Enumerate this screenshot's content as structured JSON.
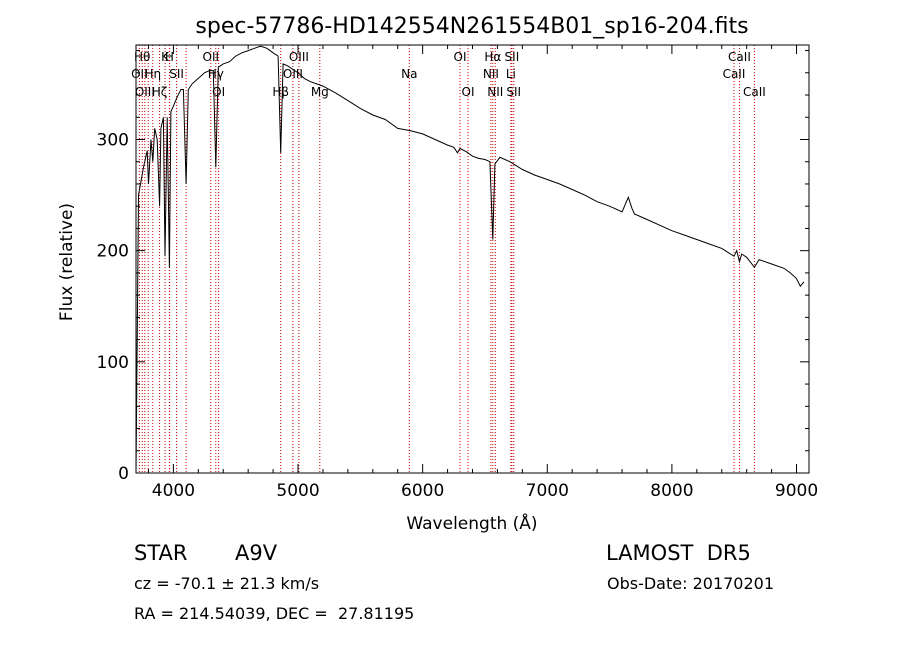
{
  "chart_data": {
    "type": "line",
    "title": "spec-57786-HD142554N261554B01_sp16-204.fits",
    "xlabel": "Wavelength (Å)",
    "ylabel": "Flux (relative)",
    "xlim": [
      3700,
      9100
    ],
    "ylim": [
      0,
      385
    ],
    "x_ticks": [
      4000,
      5000,
      6000,
      7000,
      8000,
      9000
    ],
    "y_ticks": [
      0,
      100,
      200,
      300
    ],
    "series": [
      {
        "x": [
          3700,
          3720,
          3760,
          3790,
          3800,
          3820,
          3835,
          3850,
          3870,
          3889,
          3900,
          3920,
          3933,
          3950,
          3968,
          3980,
          4000,
          4030,
          4060,
          4080,
          4102,
          4120,
          4150,
          4200,
          4250,
          4290,
          4320,
          4340,
          4360,
          4400,
          4450,
          4500,
          4550,
          4600,
          4650,
          4700,
          4750,
          4800,
          4840,
          4861,
          4880,
          4920,
          4960,
          5000,
          5050,
          5100,
          5150,
          5200,
          5300,
          5400,
          5500,
          5600,
          5700,
          5800,
          5900,
          6000,
          6100,
          6200,
          6250,
          6280,
          6300,
          6350,
          6400,
          6450,
          6500,
          6540,
          6563,
          6580,
          6620,
          6700,
          6800,
          6900,
          7000,
          7100,
          7200,
          7300,
          7400,
          7500,
          7600,
          7650,
          7680,
          7700,
          7800,
          7900,
          8000,
          8100,
          8200,
          8300,
          8400,
          8498,
          8520,
          8542,
          8560,
          8600,
          8662,
          8700,
          8800,
          8900,
          8950,
          9000,
          9030,
          9060
        ],
        "y": [
          0,
          250,
          275,
          290,
          260,
          300,
          280,
          310,
          300,
          240,
          310,
          320,
          195,
          320,
          185,
          325,
          330,
          338,
          345,
          345,
          260,
          345,
          350,
          355,
          360,
          362,
          362,
          275,
          365,
          368,
          370,
          375,
          378,
          380,
          382,
          384,
          382,
          378,
          375,
          288,
          368,
          366,
          363,
          360,
          355,
          352,
          350,
          348,
          342,
          335,
          328,
          322,
          318,
          310,
          308,
          305,
          300,
          295,
          293,
          288,
          292,
          289,
          285,
          283,
          282,
          280,
          210,
          278,
          284,
          280,
          273,
          268,
          264,
          260,
          255,
          250,
          244,
          240,
          235,
          248,
          238,
          233,
          228,
          223,
          218,
          214,
          210,
          206,
          202,
          195,
          200,
          190,
          197,
          194,
          185,
          192,
          188,
          184,
          180,
          175,
          168,
          172
        ]
      }
    ],
    "lines": [
      {
        "x": 3727
      },
      {
        "x": 3750
      },
      {
        "x": 3771
      },
      {
        "x": 3798
      },
      {
        "x": 3835
      },
      {
        "x": 3889
      },
      {
        "x": 3933
      },
      {
        "x": 3968
      },
      {
        "x": 3970
      },
      {
        "x": 4026
      },
      {
        "x": 4102
      },
      {
        "x": 4300
      },
      {
        "x": 4340
      },
      {
        "x": 4363
      },
      {
        "x": 4861
      },
      {
        "x": 4959
      },
      {
        "x": 5007
      },
      {
        "x": 5175
      },
      {
        "x": 5893
      },
      {
        "x": 6300
      },
      {
        "x": 6364
      },
      {
        "x": 6548
      },
      {
        "x": 6563
      },
      {
        "x": 6583
      },
      {
        "x": 6708
      },
      {
        "x": 6716
      },
      {
        "x": 6731
      },
      {
        "x": 8498
      },
      {
        "x": 8542
      },
      {
        "x": 8662
      }
    ],
    "line_labels": [
      {
        "text": "Hθ",
        "x": 3750,
        "row": 1
      },
      {
        "text": "K",
        "x": 3933,
        "row": 1
      },
      {
        "text": "H",
        "x": 3968,
        "row": 1
      },
      {
        "text": "OII",
        "x": 4300,
        "row": 1
      },
      {
        "text": "OIII",
        "x": 5007,
        "row": 1
      },
      {
        "text": "OI",
        "x": 6300,
        "row": 1
      },
      {
        "text": "Hα",
        "x": 6563,
        "row": 1
      },
      {
        "text": "SII",
        "x": 6716,
        "row": 1
      },
      {
        "text": "CaII",
        "x": 8542,
        "row": 1
      },
      {
        "text": "OII",
        "x": 3727,
        "row": 2
      },
      {
        "text": "Hη",
        "x": 3835,
        "row": 2
      },
      {
        "text": "SII",
        "x": 4026,
        "row": 2
      },
      {
        "text": "Hγ",
        "x": 4340,
        "row": 2
      },
      {
        "text": "OIII",
        "x": 4959,
        "row": 2
      },
      {
        "text": "Na",
        "x": 5893,
        "row": 2
      },
      {
        "text": "NII",
        "x": 6548,
        "row": 2
      },
      {
        "text": "Li",
        "x": 6708,
        "row": 2
      },
      {
        "text": "CaII",
        "x": 8498,
        "row": 2
      },
      {
        "text": "OIII",
        "x": 3771,
        "row": 3
      },
      {
        "text": "Hζ",
        "x": 3889,
        "row": 3
      },
      {
        "text": "OI",
        "x": 4363,
        "row": 3
      },
      {
        "text": "Hβ",
        "x": 4861,
        "row": 3
      },
      {
        "text": "Mg",
        "x": 5175,
        "row": 3
      },
      {
        "text": "OI",
        "x": 6364,
        "row": 3
      },
      {
        "text": "NII",
        "x": 6583,
        "row": 3
      },
      {
        "text": "SII",
        "x": 6731,
        "row": 3
      },
      {
        "text": "CaII",
        "x": 8662,
        "row": 3
      }
    ]
  },
  "info": {
    "object_type": "STAR",
    "spectral_class": "A9V",
    "survey": "LAMOST  DR5",
    "cz": "cz = -70.1 ± 21.3 km/s",
    "obs_date": "Obs-Date: 20170201",
    "coords": "RA = 214.54039, DEC =  27.81195"
  },
  "colors": {
    "spectrum": "#000000",
    "lines": "#cc0000",
    "axis": "#000000",
    "background": "#ffffff"
  }
}
